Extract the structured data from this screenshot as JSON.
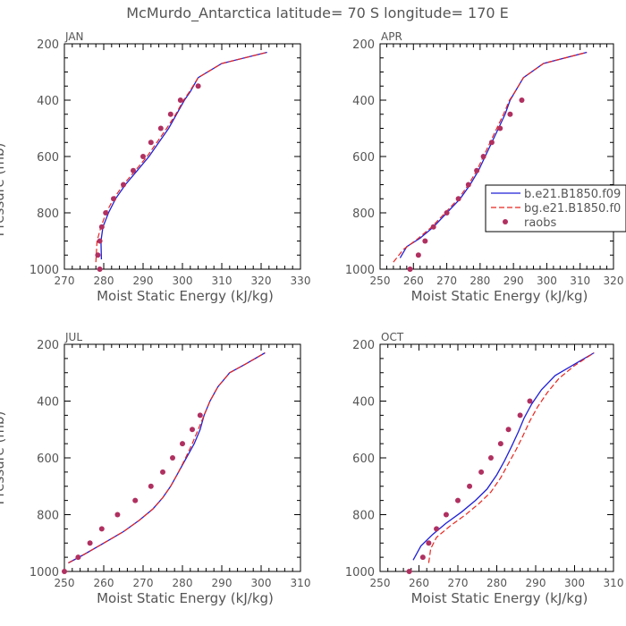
{
  "figure_title": "McMurdo_Antarctica  latitude= 70 S longitude= 170 E",
  "colors": {
    "model_1": "#1f1fd6",
    "model_2": "#e8261e",
    "raobs": "#b03060",
    "axes": "#000000",
    "text": "#555555"
  },
  "legend": {
    "entries": [
      {
        "label": "b.e21.B1850.f09",
        "style": "solid"
      },
      {
        "label": "bg.e21.B1850.f0",
        "style": "dashed"
      },
      {
        "label": "raobs",
        "style": "dot"
      }
    ]
  },
  "chart_data": [
    {
      "type": "line",
      "panel": "JAN",
      "xlabel": "Moist Static Energy (kJ/kg)",
      "ylabel": "Pressure (mb)",
      "xlim": [
        270,
        330
      ],
      "xticks": [
        270,
        280,
        290,
        300,
        310,
        320,
        330
      ],
      "ylim": [
        200,
        1000
      ],
      "yticks": [
        200,
        400,
        600,
        800,
        1000
      ],
      "series": [
        {
          "name": "b.e21.B1850.f09",
          "style": "solid",
          "points": [
            [
              279.4,
              965
            ],
            [
              279.3,
              900
            ],
            [
              279.8,
              850
            ],
            [
              281.2,
              800
            ],
            [
              283.0,
              750
            ],
            [
              285.5,
              700
            ],
            [
              288.5,
              650
            ],
            [
              291.5,
              600
            ],
            [
              294.0,
              550
            ],
            [
              296.5,
              500
            ],
            [
              298.5,
              450
            ],
            [
              300.5,
              400
            ],
            [
              302.0,
              370
            ],
            [
              304.0,
              320
            ],
            [
              310.0,
              270
            ],
            [
              321.5,
              230
            ]
          ]
        },
        {
          "name": "bg.e21.B1850.f0",
          "style": "dashed",
          "points": [
            [
              278.0,
              975
            ],
            [
              278.3,
              900
            ],
            [
              279.3,
              850
            ],
            [
              280.6,
              800
            ],
            [
              282.5,
              750
            ],
            [
              285.0,
              700
            ],
            [
              288.0,
              650
            ],
            [
              291.0,
              600
            ],
            [
              293.5,
              550
            ],
            [
              296.0,
              500
            ],
            [
              298.3,
              450
            ],
            [
              300.3,
              400
            ],
            [
              301.8,
              370
            ],
            [
              304.0,
              320
            ],
            [
              310.0,
              270
            ],
            [
              321.5,
              230
            ]
          ]
        }
      ],
      "raobs": [
        [
          279.0,
          1000
        ],
        [
          278.5,
          950
        ],
        [
          279.0,
          900
        ],
        [
          279.5,
          850
        ],
        [
          280.5,
          800
        ],
        [
          282.5,
          750
        ],
        [
          285.0,
          700
        ],
        [
          287.5,
          650
        ],
        [
          290.0,
          600
        ],
        [
          292.0,
          550
        ],
        [
          294.5,
          500
        ],
        [
          297.0,
          450
        ],
        [
          299.5,
          400
        ],
        [
          304.0,
          350
        ]
      ]
    },
    {
      "type": "line",
      "panel": "APR",
      "xlabel": "Moist Static Energy (kJ/kg)",
      "ylabel": "",
      "xlim": [
        250,
        320
      ],
      "xticks": [
        250,
        260,
        270,
        280,
        290,
        300,
        310,
        320
      ],
      "ylim": [
        200,
        1000
      ],
      "yticks": [
        200,
        400,
        600,
        800,
        1000
      ],
      "series": [
        {
          "name": "b.e21.B1850.f09",
          "style": "solid",
          "points": [
            [
              256.0,
              960
            ],
            [
              258.0,
              920
            ],
            [
              262.0,
              890
            ],
            [
              266.0,
              850
            ],
            [
              270.0,
              800
            ],
            [
              274.0,
              750
            ],
            [
              277.0,
              700
            ],
            [
              279.5,
              650
            ],
            [
              281.5,
              600
            ],
            [
              283.5,
              550
            ],
            [
              285.5,
              500
            ],
            [
              287.5,
              450
            ],
            [
              289.0,
              400
            ],
            [
              290.5,
              370
            ],
            [
              293.0,
              320
            ],
            [
              299.0,
              270
            ],
            [
              312.0,
              230
            ]
          ]
        },
        {
          "name": "bg.e21.B1850.f0",
          "style": "dashed",
          "points": [
            [
              254.0,
              975
            ],
            [
              257.0,
              930
            ],
            [
              261.0,
              895
            ],
            [
              265.5,
              850
            ],
            [
              269.5,
              800
            ],
            [
              273.5,
              750
            ],
            [
              276.5,
              700
            ],
            [
              279.0,
              650
            ],
            [
              281.0,
              600
            ],
            [
              283.0,
              550
            ],
            [
              285.0,
              500
            ],
            [
              287.0,
              450
            ],
            [
              288.8,
              400
            ],
            [
              290.5,
              370
            ],
            [
              293.0,
              320
            ],
            [
              299.0,
              270
            ],
            [
              312.0,
              230
            ]
          ]
        }
      ],
      "raobs": [
        [
          259.0,
          1000
        ],
        [
          261.5,
          950
        ],
        [
          263.5,
          900
        ],
        [
          266.0,
          850
        ],
        [
          270.0,
          800
        ],
        [
          273.5,
          750
        ],
        [
          276.5,
          700
        ],
        [
          279.0,
          650
        ],
        [
          281.0,
          600
        ],
        [
          283.5,
          550
        ],
        [
          286.0,
          500
        ],
        [
          289.0,
          450
        ],
        [
          292.5,
          400
        ]
      ]
    },
    {
      "type": "line",
      "panel": "JUL",
      "xlabel": "Moist Static Energy (kJ/kg)",
      "ylabel": "Pressure (mb)",
      "xlim": [
        250,
        310
      ],
      "xticks": [
        250,
        260,
        270,
        280,
        290,
        300,
        310
      ],
      "ylim": [
        200,
        1000
      ],
      "yticks": [
        200,
        400,
        600,
        800,
        1000
      ],
      "series": [
        {
          "name": "b.e21.B1850.f09",
          "style": "solid",
          "points": [
            [
              251.0,
              970
            ],
            [
              255.0,
              940
            ],
            [
              260.0,
              900
            ],
            [
              265.0,
              860
            ],
            [
              269.0,
              820
            ],
            [
              272.5,
              780
            ],
            [
              275.0,
              740
            ],
            [
              277.0,
              700
            ],
            [
              279.0,
              650
            ],
            [
              281.0,
              600
            ],
            [
              283.0,
              550
            ],
            [
              284.5,
              500
            ],
            [
              285.5,
              450
            ],
            [
              287.0,
              400
            ],
            [
              289.0,
              350
            ],
            [
              292.0,
              300
            ],
            [
              296.0,
              270
            ],
            [
              301.0,
              230
            ]
          ]
        },
        {
          "name": "bg.e21.B1850.f0",
          "style": "dashed",
          "points": [
            [
              251.0,
              970
            ],
            [
              255.0,
              940
            ],
            [
              260.0,
              900
            ],
            [
              265.0,
              860
            ],
            [
              269.0,
              820
            ],
            [
              272.5,
              780
            ],
            [
              275.0,
              740
            ],
            [
              277.0,
              700
            ],
            [
              279.0,
              650
            ],
            [
              280.8,
              600
            ],
            [
              282.5,
              550
            ],
            [
              284.0,
              500
            ],
            [
              285.5,
              450
            ],
            [
              287.0,
              400
            ],
            [
              289.0,
              350
            ],
            [
              292.0,
              300
            ],
            [
              296.0,
              270
            ],
            [
              301.0,
              230
            ]
          ]
        }
      ],
      "raobs": [
        [
          250.0,
          1000
        ],
        [
          253.5,
          950
        ],
        [
          256.5,
          900
        ],
        [
          259.5,
          850
        ],
        [
          263.5,
          800
        ],
        [
          268.0,
          750
        ],
        [
          272.0,
          700
        ],
        [
          275.0,
          650
        ],
        [
          277.5,
          600
        ],
        [
          280.0,
          550
        ],
        [
          282.5,
          500
        ],
        [
          284.5,
          450
        ]
      ]
    },
    {
      "type": "line",
      "panel": "OCT",
      "xlabel": "Moist Static Energy (kJ/kg)",
      "ylabel": "",
      "xlim": [
        250,
        310
      ],
      "xticks": [
        250,
        260,
        270,
        280,
        290,
        300,
        310
      ],
      "ylim": [
        200,
        1000
      ],
      "yticks": [
        200,
        400,
        600,
        800,
        1000
      ],
      "series": [
        {
          "name": "b.e21.B1850.f09",
          "style": "solid",
          "points": [
            [
              258.5,
              960
            ],
            [
              260.5,
              910
            ],
            [
              263.5,
              870
            ],
            [
              267.0,
              830
            ],
            [
              271.0,
              790
            ],
            [
              274.5,
              750
            ],
            [
              277.5,
              710
            ],
            [
              280.0,
              660
            ],
            [
              282.0,
              610
            ],
            [
              283.8,
              560
            ],
            [
              285.5,
              510
            ],
            [
              287.0,
              460
            ],
            [
              289.0,
              410
            ],
            [
              291.5,
              360
            ],
            [
              295.0,
              310
            ],
            [
              300.0,
              270
            ],
            [
              305.0,
              230
            ]
          ]
        },
        {
          "name": "bg.e21.B1850.f0",
          "style": "dashed",
          "points": [
            [
              262.5,
              970
            ],
            [
              263.0,
              920
            ],
            [
              264.5,
              880
            ],
            [
              268.0,
              840
            ],
            [
              272.0,
              800
            ],
            [
              275.5,
              760
            ],
            [
              278.5,
              720
            ],
            [
              281.0,
              670
            ],
            [
              283.0,
              620
            ],
            [
              285.0,
              570
            ],
            [
              286.8,
              520
            ],
            [
              288.5,
              470
            ],
            [
              290.5,
              420
            ],
            [
              293.0,
              370
            ],
            [
              296.0,
              320
            ],
            [
              300.0,
              275
            ],
            [
              305.0,
              230
            ]
          ]
        }
      ],
      "raobs": [
        [
          257.5,
          1000
        ],
        [
          261.0,
          950
        ],
        [
          262.5,
          900
        ],
        [
          264.5,
          850
        ],
        [
          267.0,
          800
        ],
        [
          270.0,
          750
        ],
        [
          273.0,
          700
        ],
        [
          276.0,
          650
        ],
        [
          278.5,
          600
        ],
        [
          281.0,
          550
        ],
        [
          283.0,
          500
        ],
        [
          286.0,
          450
        ],
        [
          288.5,
          400
        ]
      ]
    }
  ]
}
